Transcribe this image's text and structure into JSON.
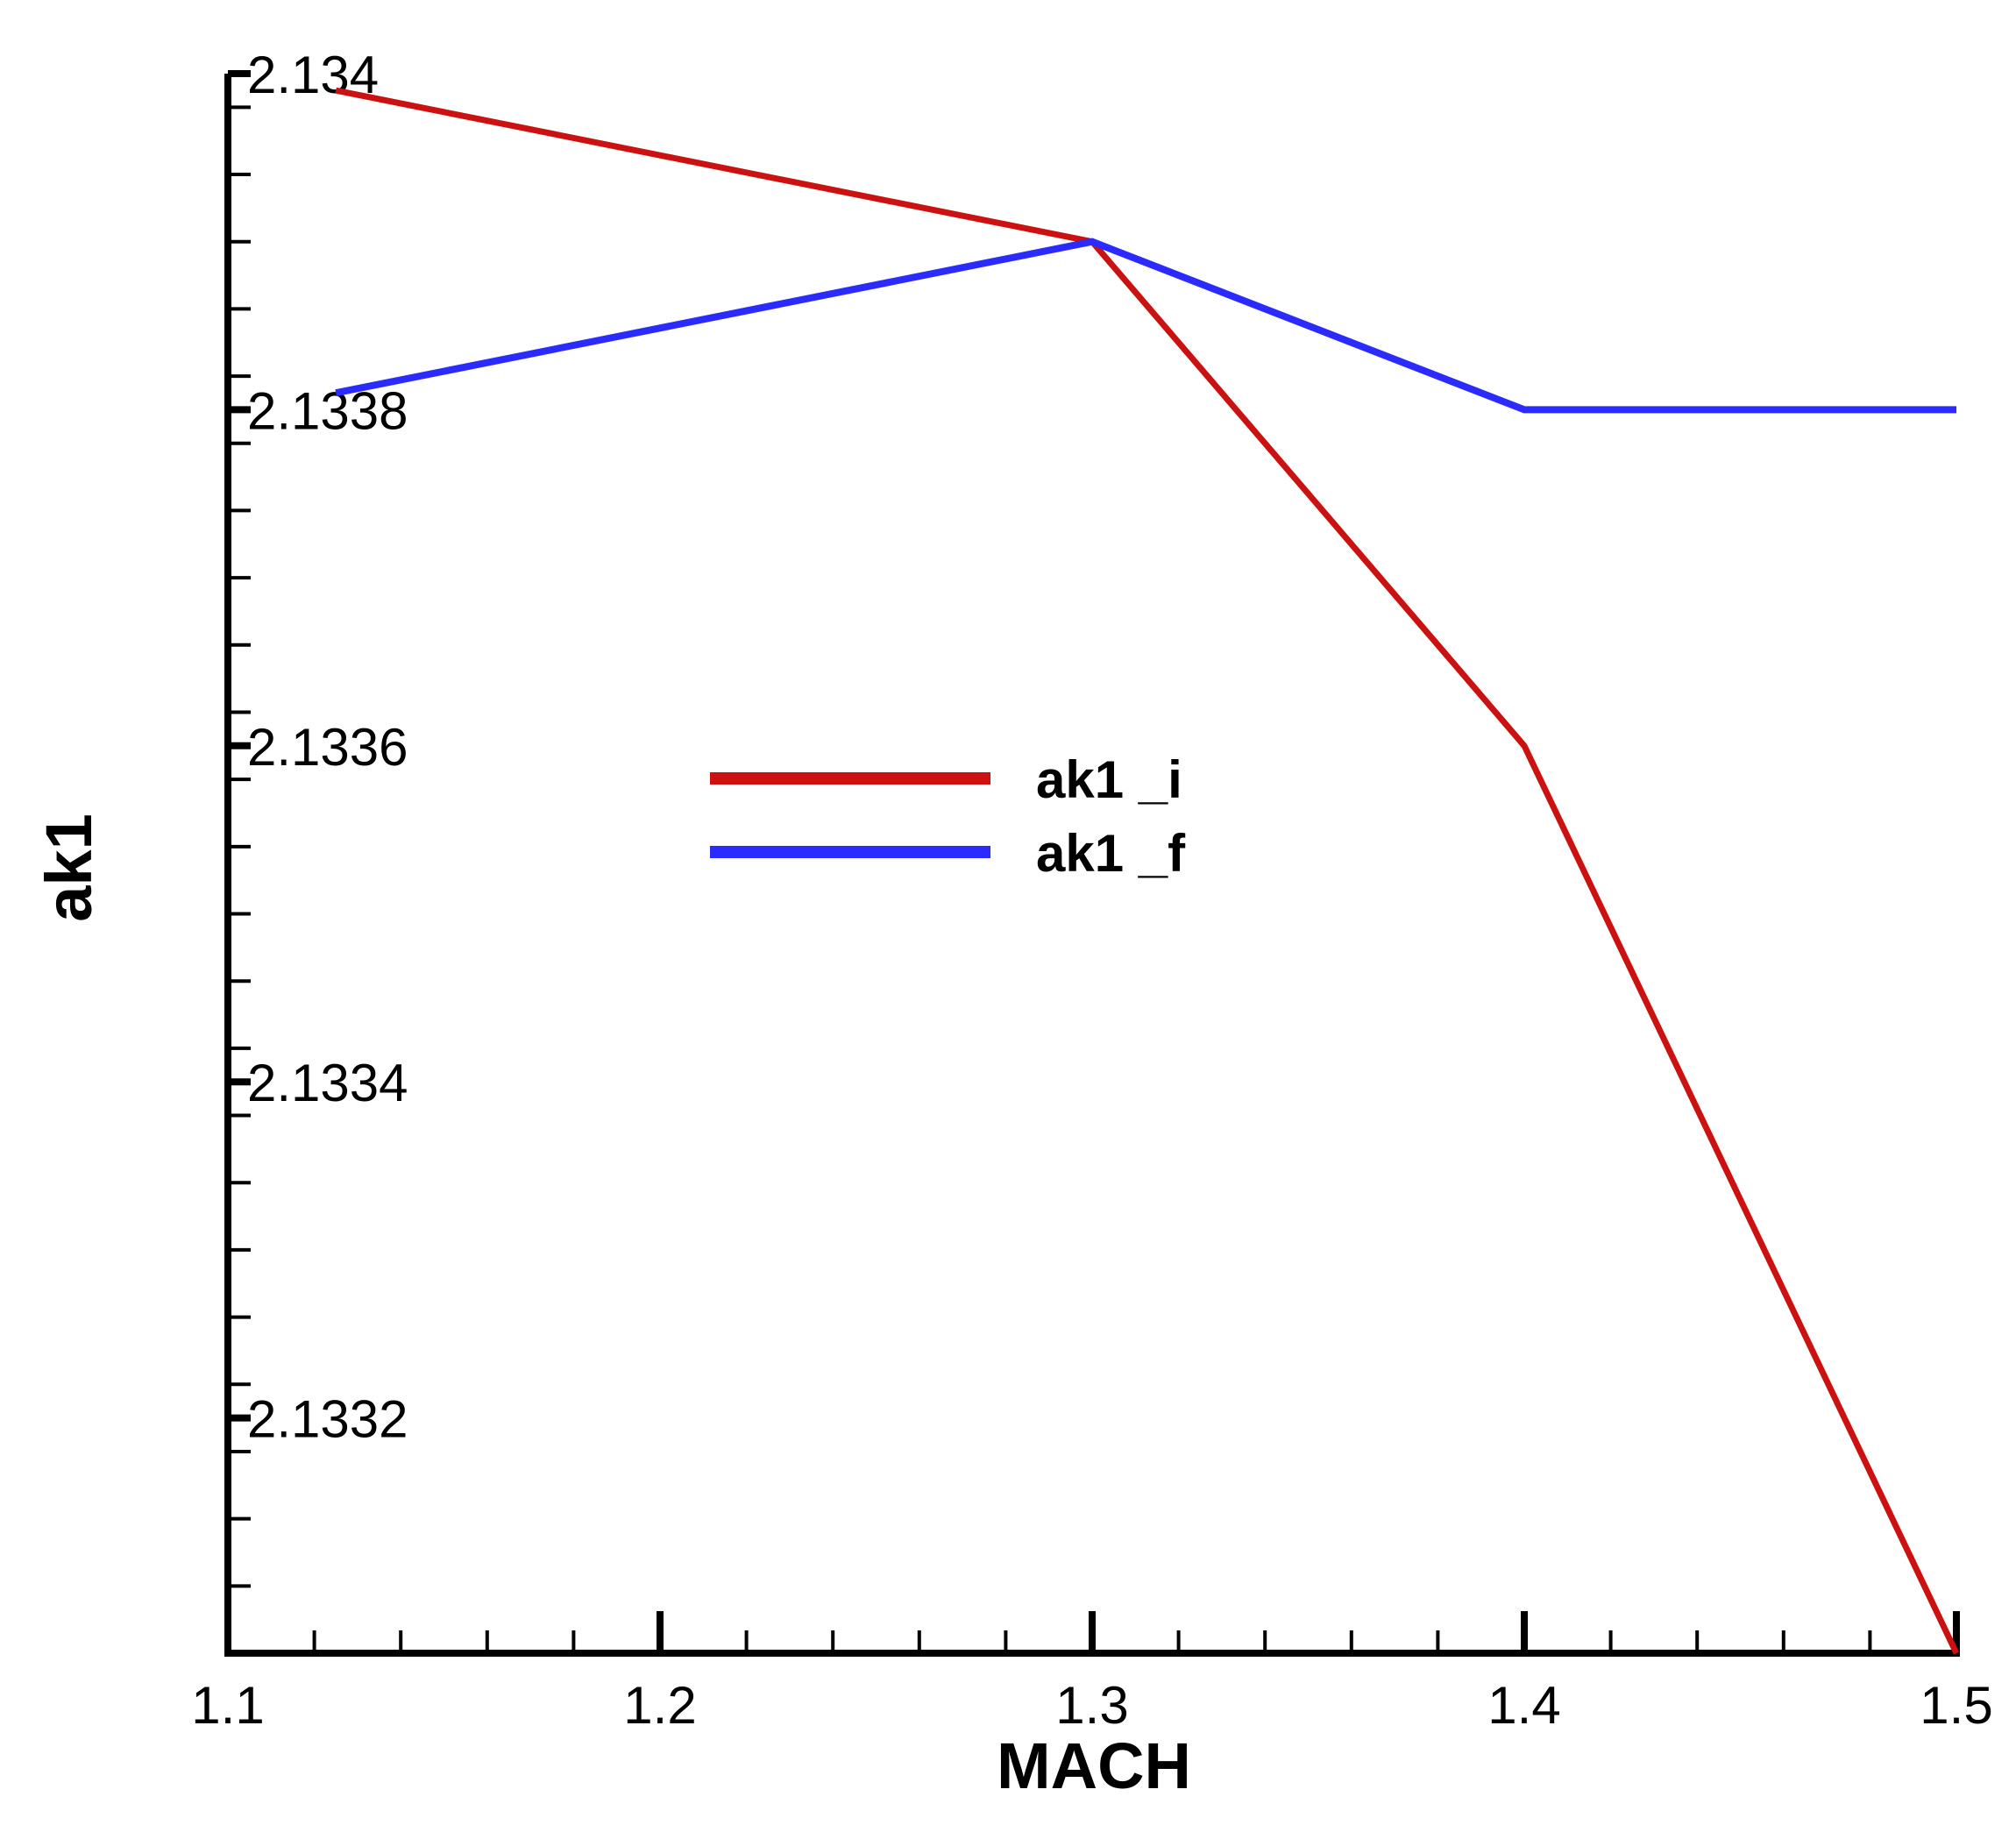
{
  "chart_data": {
    "type": "line",
    "xlabel": "MACH",
    "ylabel": "ak1",
    "xlim": [
      1.1,
      1.5
    ],
    "ylim": [
      2.13306,
      2.134
    ],
    "x_ticks": [
      1.1,
      1.2,
      1.3,
      1.4,
      1.5
    ],
    "x_tick_labels": [
      "1.1",
      "1.2",
      "1.3",
      "1.4",
      "1.5"
    ],
    "y_ticks": [
      2.134,
      2.1338,
      2.1336,
      2.1334,
      2.1332
    ],
    "y_tick_labels": [
      "2.134",
      "2.1338",
      "2.1336",
      "2.1334",
      "2.1332"
    ],
    "grid": false,
    "legend_position": "center",
    "series": [
      {
        "name": "ak1 _i",
        "color": "#cc1111",
        "x": [
          1.125,
          1.3,
          1.4,
          1.5
        ],
        "y": [
          2.13399,
          2.1339,
          2.1336,
          2.13306
        ]
      },
      {
        "name": "ak1 _f",
        "color": "#2b2bff",
        "x": [
          1.125,
          1.3,
          1.4,
          1.5
        ],
        "y": [
          2.13381,
          2.1339,
          2.1338,
          2.1338
        ]
      }
    ]
  }
}
